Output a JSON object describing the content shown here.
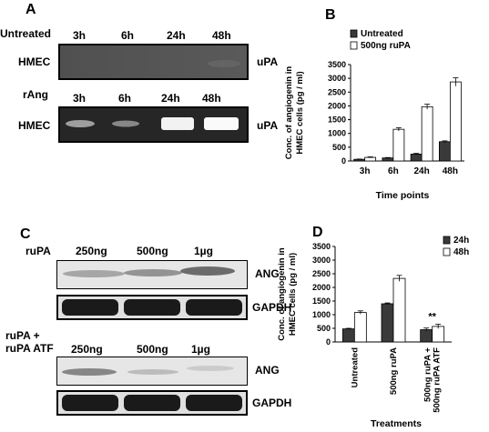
{
  "panels": {
    "A": {
      "letter": "A",
      "untreated_label": "Untreated",
      "rang_label": "rAng",
      "times_top": [
        "3h",
        "6h",
        "24h",
        "48h"
      ],
      "times_bottom": [
        "3h",
        "6h",
        "24h",
        "48h"
      ],
      "cell_label_top": "HMEC",
      "cell_label_bottom": "HMEC",
      "band_label_top": "uPA",
      "band_label_bottom": "uPA",
      "gel_top_colors": "#4a4a4a",
      "gel_bottom_colors": "#262626"
    },
    "B": {
      "letter": "B"
    },
    "C": {
      "letter": "C",
      "rupa_label": "ruPA",
      "rupa_atf_label_line1": "ruPA +",
      "rupa_atf_label_line2": "ruPA ATF",
      "doses_top": [
        "250ng",
        "500ng",
        "1µg"
      ],
      "doses_bottom": [
        "250ng",
        "500ng",
        "1µg"
      ],
      "ang_top": "ANG",
      "gapdh_top": "GAPDH",
      "ang_bottom": "ANG",
      "gapdh_bottom": "GAPDH"
    },
    "D": {
      "letter": "D"
    }
  },
  "chart_data": [
    {
      "type": "bar",
      "ylabel_line1": "Conc. of angiogenin in",
      "ylabel_line2": "HMEC cells (pg / ml)",
      "xlabel": "Time points",
      "categories": [
        "3h",
        "6h",
        "24h",
        "48h"
      ],
      "ylim": [
        0,
        3500
      ],
      "yticks": [
        0,
        500,
        1000,
        1500,
        2000,
        2500,
        3000,
        3500
      ],
      "legend_position": "top-left",
      "series": [
        {
          "name": "Untreated",
          "color": "#3a3a3a",
          "values": [
            60,
            110,
            250,
            700
          ],
          "errors": [
            10,
            15,
            25,
            30
          ]
        },
        {
          "name": "500ng ruPA",
          "color": "#ffffff",
          "values": [
            130,
            1150,
            1970,
            2870
          ],
          "errors": [
            20,
            60,
            90,
            150
          ]
        }
      ]
    },
    {
      "type": "bar",
      "ylabel_line1": "Conc. of angiogenin in",
      "ylabel_line2": "HMEC cells (pg / ml)",
      "xlabel": "Treatments",
      "categories": [
        "Untreated",
        "500ng ruPA",
        "500ng ruPA +\n500ng ruPA ATF"
      ],
      "ylim": [
        0,
        3500
      ],
      "yticks": [
        0,
        500,
        1000,
        1500,
        2000,
        2500,
        3000,
        3500
      ],
      "legend_position": "top-right",
      "annotation": "**",
      "series": [
        {
          "name": "24h",
          "color": "#3a3a3a",
          "values": [
            480,
            1400,
            450
          ],
          "errors": [
            20,
            30,
            60
          ]
        },
        {
          "name": "48h",
          "color": "#ffffff",
          "values": [
            1080,
            2330,
            570
          ],
          "errors": [
            60,
            110,
            80
          ]
        }
      ]
    }
  ]
}
